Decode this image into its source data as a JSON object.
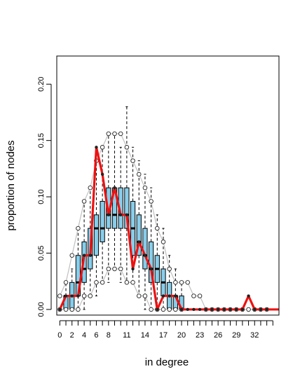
{
  "chart_data": {
    "type": "boxplot",
    "xlabel": "in degree",
    "ylabel": "proportion of nodes",
    "x_tick_labels": [
      "0",
      "2",
      "4",
      "6",
      "8",
      "11",
      "14",
      "17",
      "20",
      "23",
      "26",
      "29",
      "32"
    ],
    "y_tick_labels": [
      "0.00",
      "0.05",
      "0.10",
      "0.15",
      "0.20"
    ],
    "y_ticks": [
      0.0,
      0.05,
      0.1,
      0.15,
      0.2
    ],
    "xlim": [
      -0.5,
      36
    ],
    "ylim": [
      -0.005,
      0.225
    ],
    "grid": false,
    "legend": "none",
    "colors": {
      "box_fill": "#87ceeb",
      "observed_line": "#ee1111",
      "envelope_line": "#c0c0c0",
      "whisker": "#000000"
    },
    "series": [
      {
        "name": "",
        "kind": "observed",
        "x": [
          0,
          1,
          2,
          3,
          4,
          5,
          6,
          7,
          8,
          9,
          10,
          11,
          12,
          13,
          14,
          15,
          16,
          17,
          18,
          19,
          20,
          21,
          22,
          23,
          24,
          25,
          26,
          27,
          28,
          29,
          30,
          31,
          32,
          33,
          34,
          35,
          36
        ],
        "values": [
          0.0,
          0.012,
          0.012,
          0.012,
          0.048,
          0.048,
          0.144,
          0.12,
          0.084,
          0.108,
          0.084,
          0.084,
          0.036,
          0.06,
          0.048,
          0.036,
          0.0,
          0.012,
          0.012,
          0.012,
          0.0,
          0.0,
          0.0,
          0.0,
          0.0,
          0.0,
          0.0,
          0.0,
          0.0,
          0.0,
          0.0,
          0.012,
          0.0,
          0.0,
          0.0,
          0.0,
          0.0
        ]
      },
      {
        "name": "",
        "kind": "envelope_upper",
        "x": [
          0,
          1,
          2,
          3,
          4,
          5,
          6,
          7,
          8,
          9,
          10,
          11,
          12,
          13,
          14,
          15,
          16,
          17,
          18,
          19,
          20,
          21,
          22,
          23,
          24,
          25,
          26,
          27,
          28,
          29,
          30,
          31,
          32,
          33,
          34
        ],
        "values": [
          0.012,
          0.024,
          0.048,
          0.072,
          0.096,
          0.108,
          0.132,
          0.144,
          0.156,
          0.156,
          0.156,
          0.144,
          0.132,
          0.12,
          0.108,
          0.096,
          0.072,
          0.06,
          0.036,
          0.024,
          0.024,
          0.024,
          0.012,
          0.012,
          0.0,
          0.0,
          0.0,
          0.0,
          0.0,
          0.0,
          0.0,
          0.0,
          0.0,
          0.0,
          0.0
        ]
      },
      {
        "name": "",
        "kind": "envelope_lower",
        "x": [
          0,
          1,
          2,
          3,
          4,
          5,
          6,
          7,
          8,
          9,
          10,
          11,
          12,
          13,
          14,
          15,
          16,
          17,
          18,
          19,
          20
        ],
        "values": [
          0.0,
          0.0,
          0.0,
          0.0,
          0.012,
          0.012,
          0.024,
          0.024,
          0.036,
          0.036,
          0.036,
          0.024,
          0.024,
          0.012,
          0.012,
          0.0,
          0.0,
          0.0,
          0.0,
          0.0,
          0.0
        ]
      }
    ],
    "boxes": [
      {
        "x": 1,
        "whisker_low": 0.0,
        "q1": 0.0,
        "median": 0.012,
        "q3": 0.012,
        "whisker_high": 0.024
      },
      {
        "x": 2,
        "whisker_low": 0.0,
        "q1": 0.0,
        "median": 0.012,
        "q3": 0.024,
        "whisker_high": 0.036
      },
      {
        "x": 3,
        "whisker_low": 0.0,
        "q1": 0.012,
        "median": 0.024,
        "q3": 0.048,
        "whisker_high": 0.072
      },
      {
        "x": 4,
        "whisker_low": 0.0,
        "q1": 0.024,
        "median": 0.036,
        "q3": 0.06,
        "whisker_high": 0.096
      },
      {
        "x": 5,
        "whisker_low": 0.012,
        "q1": 0.036,
        "median": 0.048,
        "q3": 0.072,
        "whisker_high": 0.108
      },
      {
        "x": 6,
        "whisker_low": 0.012,
        "q1": 0.048,
        "median": 0.072,
        "q3": 0.084,
        "whisker_high": 0.132
      },
      {
        "x": 7,
        "whisker_low": 0.024,
        "q1": 0.06,
        "median": 0.072,
        "q3": 0.096,
        "whisker_high": 0.144
      },
      {
        "x": 8,
        "whisker_low": 0.024,
        "q1": 0.072,
        "median": 0.084,
        "q3": 0.108,
        "whisker_high": 0.156
      },
      {
        "x": 9,
        "whisker_low": 0.036,
        "q1": 0.072,
        "median": 0.084,
        "q3": 0.108,
        "whisker_high": 0.156
      },
      {
        "x": 10,
        "whisker_low": 0.024,
        "q1": 0.072,
        "median": 0.084,
        "q3": 0.108,
        "whisker_high": 0.144
      },
      {
        "x": 11,
        "whisker_low": 0.024,
        "q1": 0.072,
        "median": 0.084,
        "q3": 0.108,
        "whisker_high": 0.18
      },
      {
        "x": 12,
        "whisker_low": 0.024,
        "q1": 0.048,
        "median": 0.072,
        "q3": 0.096,
        "whisker_high": 0.144
      },
      {
        "x": 13,
        "whisker_low": 0.012,
        "q1": 0.048,
        "median": 0.06,
        "q3": 0.084,
        "whisker_high": 0.132
      },
      {
        "x": 14,
        "whisker_low": 0.0,
        "q1": 0.036,
        "median": 0.048,
        "q3": 0.072,
        "whisker_high": 0.12
      },
      {
        "x": 15,
        "whisker_low": 0.0,
        "q1": 0.024,
        "median": 0.036,
        "q3": 0.06,
        "whisker_high": 0.108
      },
      {
        "x": 16,
        "whisker_low": 0.0,
        "q1": 0.024,
        "median": 0.036,
        "q3": 0.048,
        "whisker_high": 0.084
      },
      {
        "x": 17,
        "whisker_low": 0.0,
        "q1": 0.012,
        "median": 0.024,
        "q3": 0.036,
        "whisker_high": 0.072
      },
      {
        "x": 18,
        "whisker_low": 0.0,
        "q1": 0.0,
        "median": 0.012,
        "q3": 0.024,
        "whisker_high": 0.048
      },
      {
        "x": 19,
        "whisker_low": 0.0,
        "q1": 0.0,
        "median": 0.012,
        "q3": 0.012,
        "whisker_high": 0.036
      },
      {
        "x": 20,
        "whisker_low": 0.0,
        "q1": 0.0,
        "median": 0.0,
        "q3": 0.012,
        "whisker_high": 0.024
      }
    ]
  }
}
